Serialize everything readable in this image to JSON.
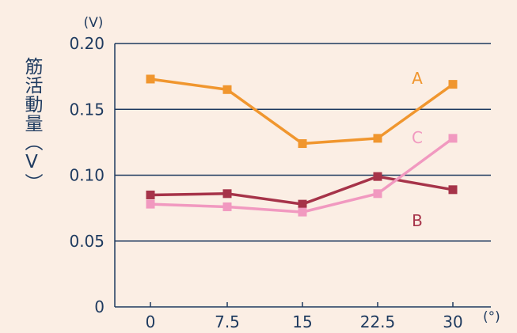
{
  "chart_data": {
    "type": "line",
    "ylabel": "筋活動量（V）",
    "y_unit": "(V)",
    "x_unit": "(°)",
    "x": [
      0,
      7.5,
      15,
      22.5,
      30
    ],
    "x_tick_labels": [
      "0",
      "7.5",
      "15",
      "22.5",
      "30"
    ],
    "y_ticks": [
      0,
      0.05,
      0.1,
      0.15,
      0.2
    ],
    "y_tick_labels": [
      "0",
      "0.05",
      "0.10",
      "0.15",
      "0.20"
    ],
    "ylim": [
      0,
      0.2
    ],
    "grid": "horizontal",
    "series": [
      {
        "name": "A",
        "color": "#f0962e",
        "values": [
          0.173,
          0.165,
          0.124,
          0.128,
          0.169
        ]
      },
      {
        "name": "B",
        "color": "#a63349",
        "values": [
          0.085,
          0.086,
          0.078,
          0.099,
          0.089
        ]
      },
      {
        "name": "C",
        "color": "#f199c0",
        "values": [
          0.078,
          0.076,
          0.072,
          0.086,
          0.128
        ]
      }
    ]
  },
  "colors": {
    "background": "#fbeee4",
    "axis": "#1e3a5f",
    "gridline": "#1e3a5f"
  }
}
